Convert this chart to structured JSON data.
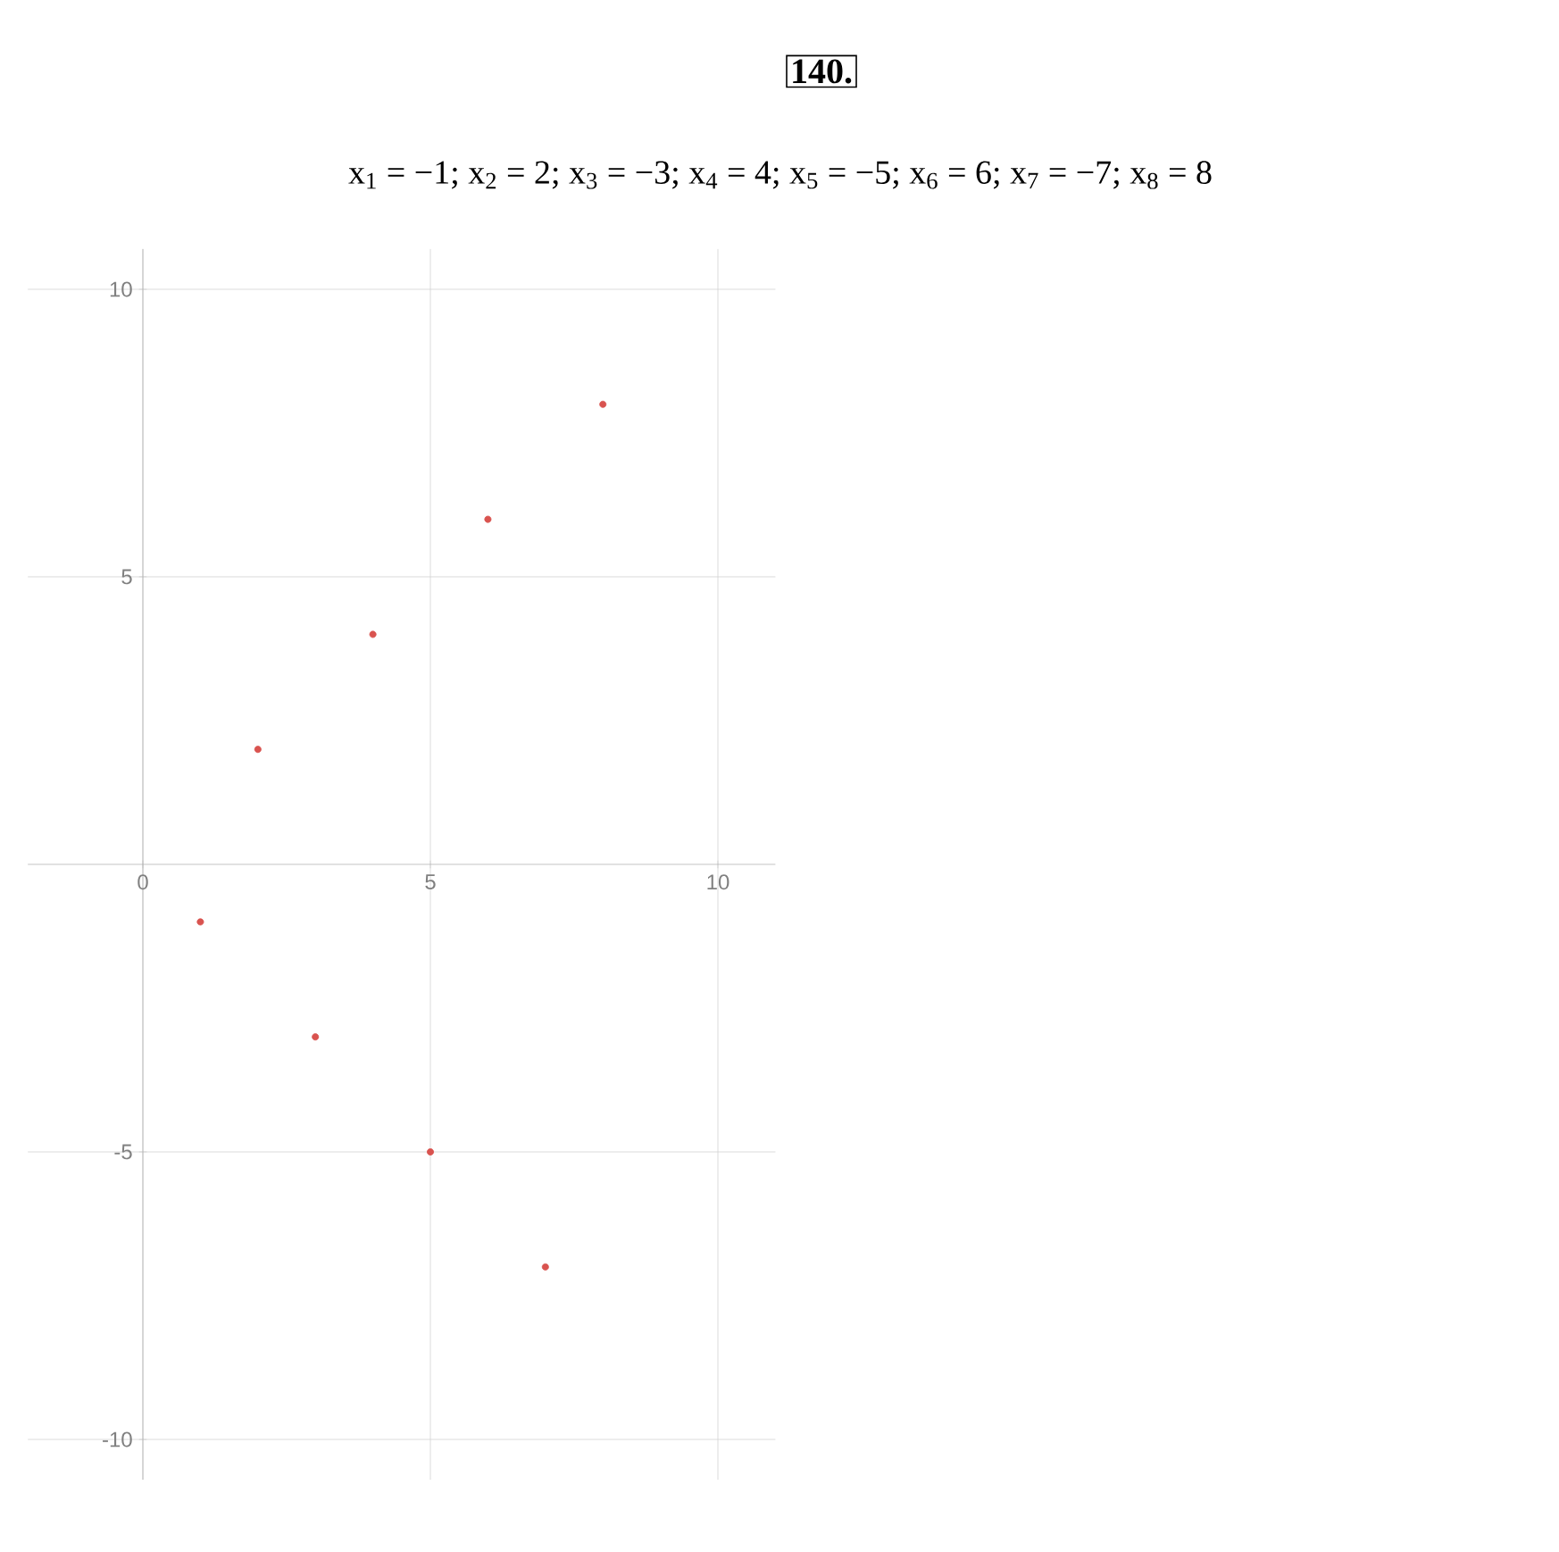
{
  "chart_data": {
    "type": "scatter",
    "title": "140.",
    "subtitle": "x$_{1}$ = −1;  x$_{2}$ = 2;  x$_{3}$ = −3;  x$_{4}$ = 4;  x$_{5}$ = −5;  x$_{6}$ = 6;  x$_{7}$ = −7;  x$_{8}$ = 8",
    "x": [
      1,
      2,
      3,
      4,
      5,
      6,
      7,
      8
    ],
    "values": [
      -1,
      2,
      -3,
      4,
      -5,
      6,
      -7,
      8
    ],
    "color": "#d9534f",
    "xlim": [
      -2,
      11
    ],
    "ylim": [
      -10.7,
      10.7
    ],
    "xticks": [
      0,
      5,
      10
    ],
    "yticks": [
      -10,
      -5,
      5,
      10
    ],
    "grid": true
  }
}
